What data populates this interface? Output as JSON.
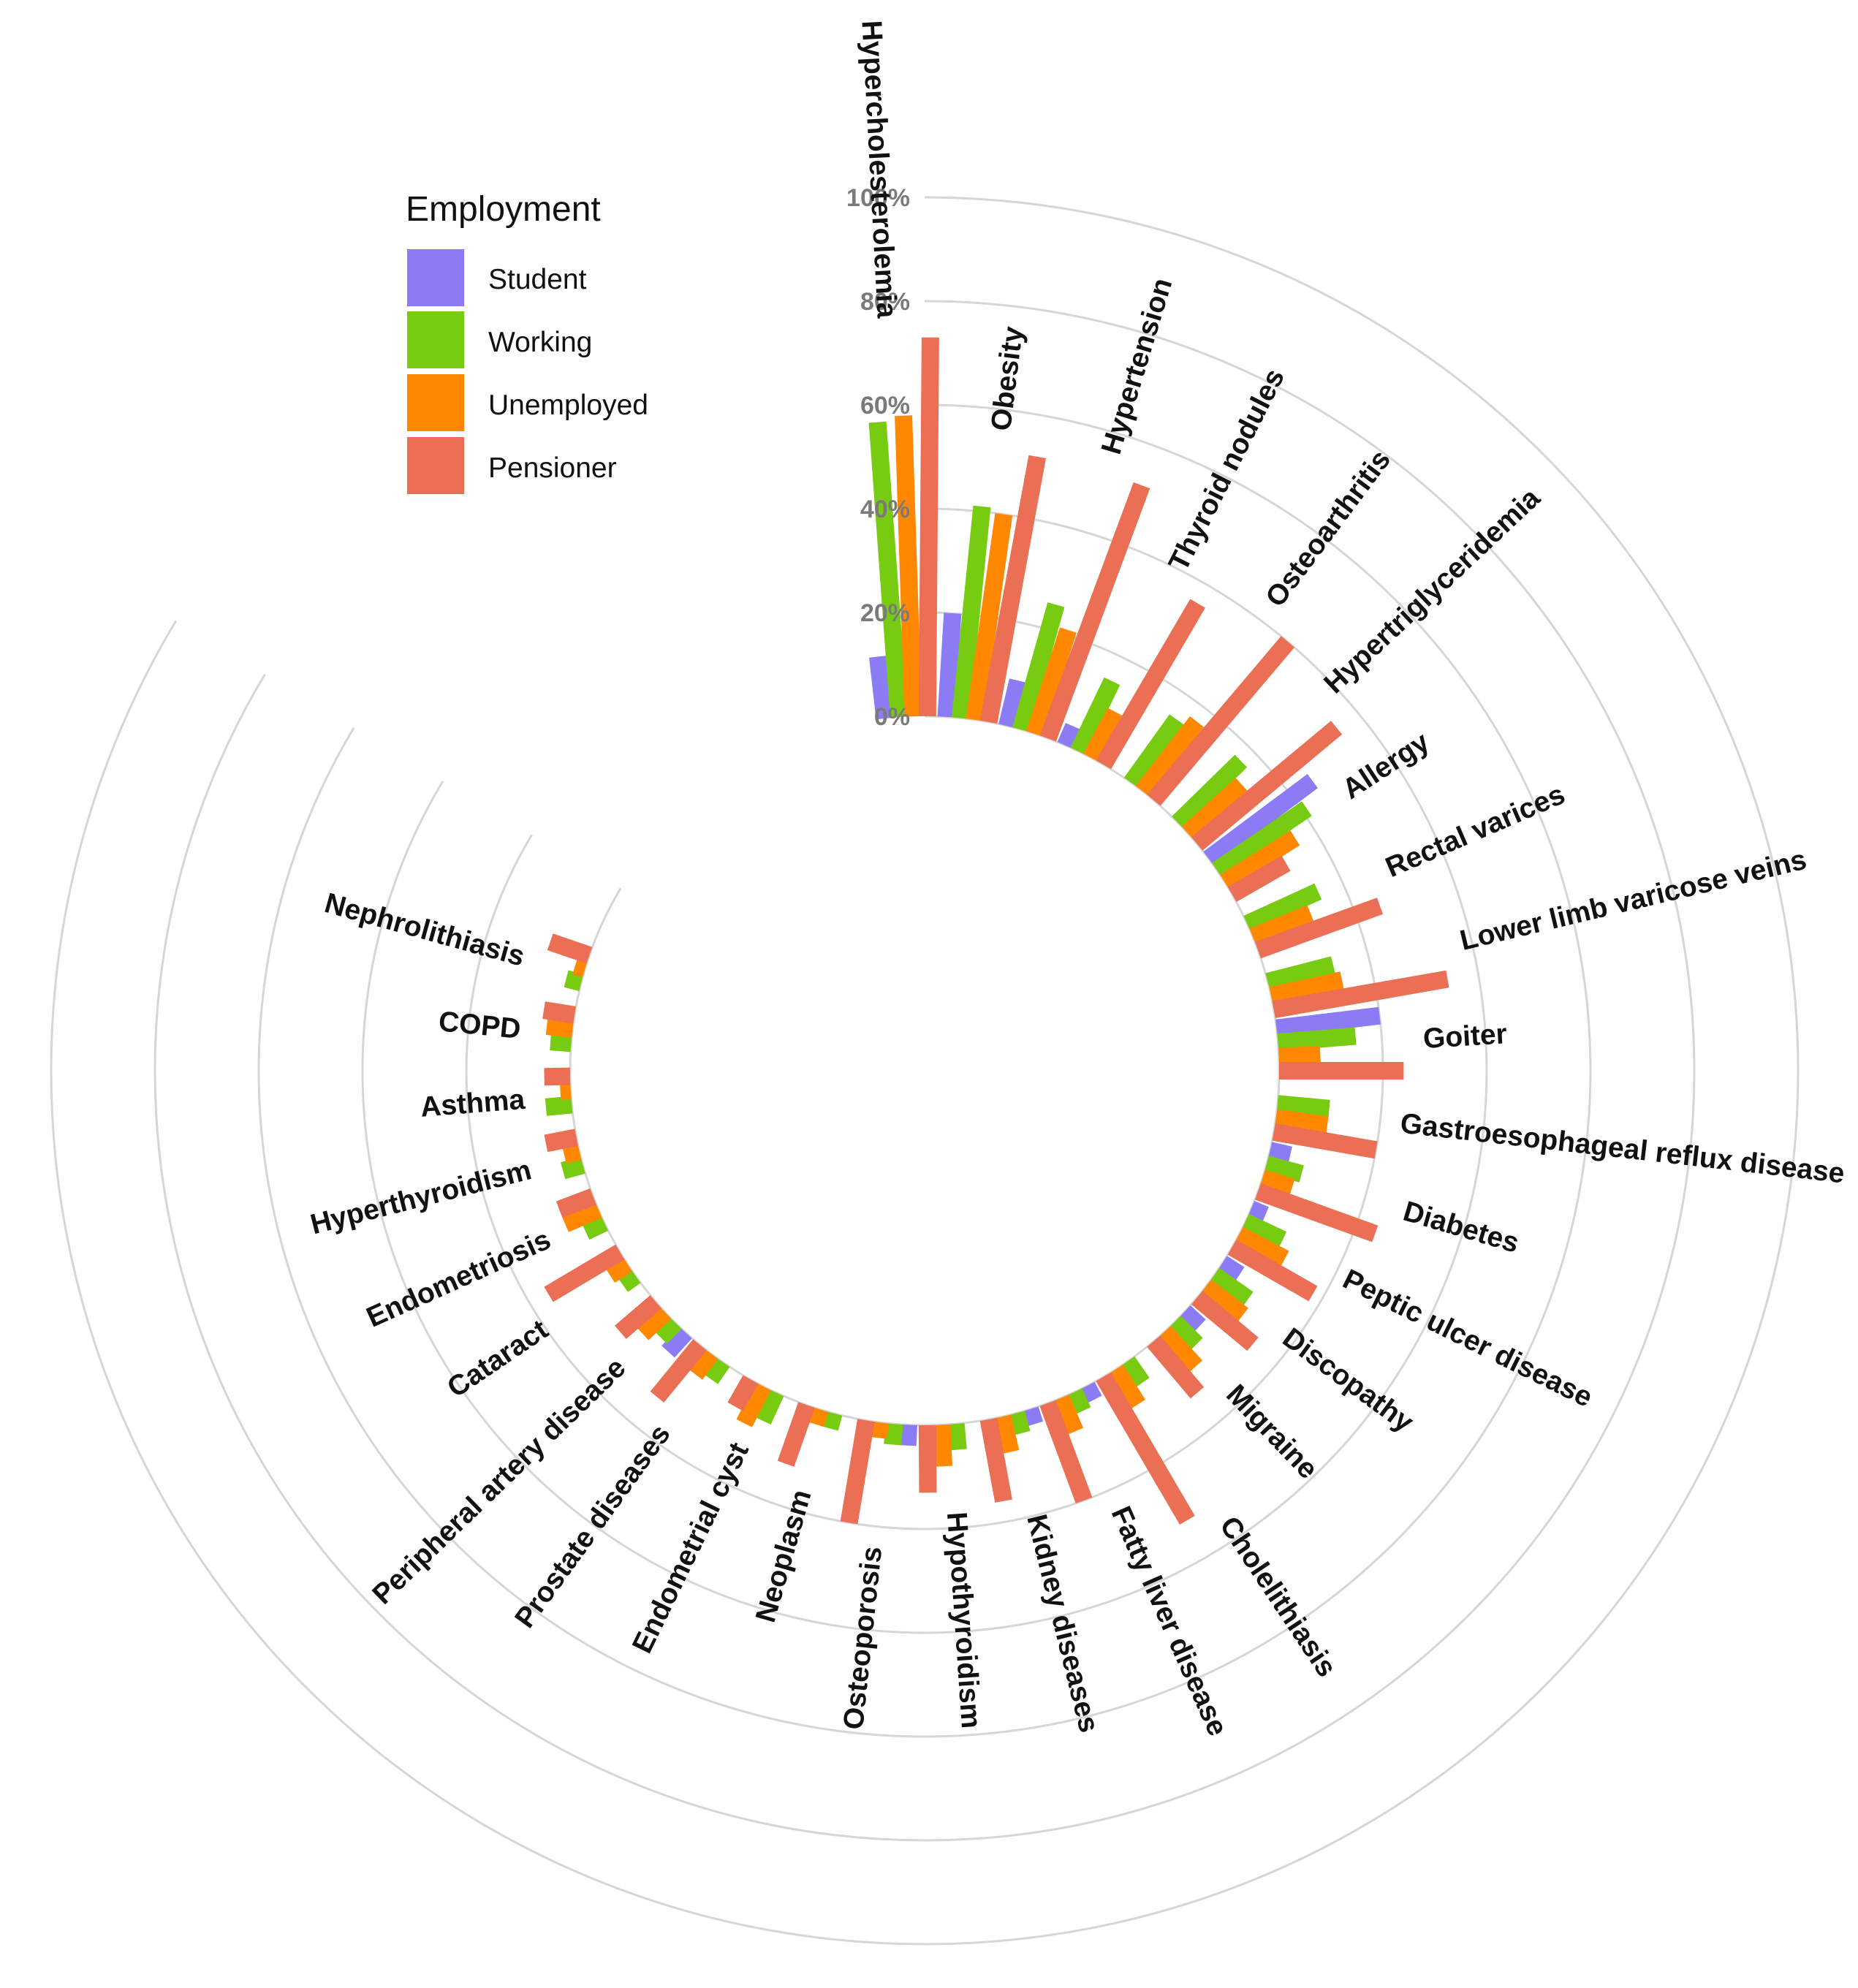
{
  "chart_data": {
    "type": "bar",
    "layout": "circular-grouped-bar",
    "title": "",
    "xlabel": "",
    "ylabel": "",
    "ylim": [
      0,
      100
    ],
    "radial_ticks": [
      "0%",
      "20%",
      "40%",
      "60%",
      "80%",
      "100%"
    ],
    "legend": {
      "title": "Employment",
      "placement": "top-left"
    },
    "categories": [
      "Hypercholesterolemia",
      "Obesity",
      "Hypertension",
      "Thyroid nodules",
      "Osteoarthritis",
      "Hypertriglyceridemia",
      "Allergy",
      "Rectal varices",
      "Lower limb varicose veins",
      "Goiter",
      "Gastroesophageal reflux disease",
      "Diabetes",
      "Peptic ulcer disease",
      "Discopathy",
      "Migraine",
      "Cholelithiasis",
      "Fatty liver disease",
      "Kidney diseases",
      "Hypothyroidism",
      "Osteoporosis",
      "Neoplasm",
      "Endometrial cyst",
      "Prostate diseases",
      "Peripheral artery disease",
      "Cataract",
      "Endometriosis",
      "Hyperthyroidism",
      "Asthma",
      "COPD",
      "Nephrolithiasis"
    ],
    "series": [
      {
        "name": "Student",
        "color": "#8b7cf6",
        "values": [
          12,
          20,
          9,
          4,
          0,
          0,
          25,
          0,
          0,
          20,
          0,
          4,
          3,
          4,
          4,
          0,
          3,
          3,
          0,
          4,
          0,
          0,
          0,
          5,
          0,
          0,
          0,
          0,
          0,
          0
        ]
      },
      {
        "name": "Working",
        "color": "#77cc11",
        "values": [
          57,
          41,
          25,
          15,
          15,
          17,
          21,
          15,
          13,
          15,
          10,
          7,
          8,
          8,
          6,
          5,
          4,
          4,
          5,
          4,
          3,
          6,
          4,
          4,
          3,
          4,
          4,
          5,
          4,
          3
        ]
      },
      {
        "name": "Unemployed",
        "color": "#ff8800",
        "values": [
          58,
          40,
          21,
          10,
          17,
          14,
          16,
          12,
          14,
          8,
          10,
          6,
          10,
          9,
          9,
          8,
          7,
          7,
          8,
          3,
          3,
          8,
          5,
          6,
          4,
          7,
          3,
          2,
          5,
          2
        ]
      },
      {
        "name": "Pensioner",
        "color": "#ea6f55",
        "values": [
          73,
          52,
          52,
          36,
          40,
          35,
          12,
          25,
          34,
          24,
          20,
          24,
          18,
          14,
          13,
          32,
          20,
          16,
          13,
          20,
          12,
          6,
          13,
          9,
          16,
          7,
          6,
          5,
          6,
          8
        ]
      }
    ]
  }
}
